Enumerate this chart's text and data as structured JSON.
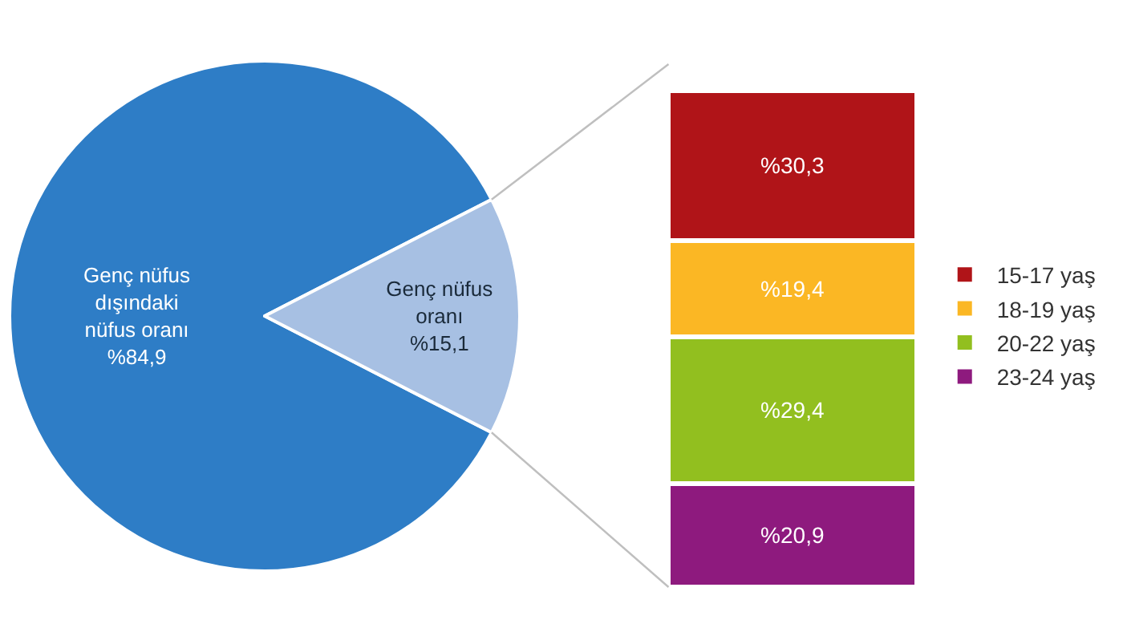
{
  "chart_data": [
    {
      "type": "pie",
      "categories": [
        "Genç nüfus dışındaki nüfus oranı",
        "Genç nüfus oranı"
      ],
      "values": [
        84.9,
        15.1
      ],
      "value_labels": [
        "%84,9",
        "%15,1"
      ],
      "colors": [
        "#2e7dc6",
        "#a7c0e3"
      ],
      "legend": false
    },
    {
      "type": "bar",
      "stacked": true,
      "categories": [
        null
      ],
      "legend": "right",
      "series": [
        {
          "name": "23-24 yaş",
          "color": "#8e1a7e",
          "values": [
            20.9
          ],
          "value_labels": [
            "%20,9"
          ]
        },
        {
          "name": "20-22 yaş",
          "color": "#92bf1f",
          "values": [
            29.4
          ],
          "value_labels": [
            "%29,4"
          ]
        },
        {
          "name": "18-19 yaş",
          "color": "#fbb724",
          "values": [
            19.4
          ],
          "value_labels": [
            "%19,4"
          ]
        },
        {
          "name": "15-17 yaş",
          "color": "#b01418",
          "values": [
            30.3
          ],
          "value_labels": [
            "%30,3"
          ]
        }
      ]
    }
  ]
}
